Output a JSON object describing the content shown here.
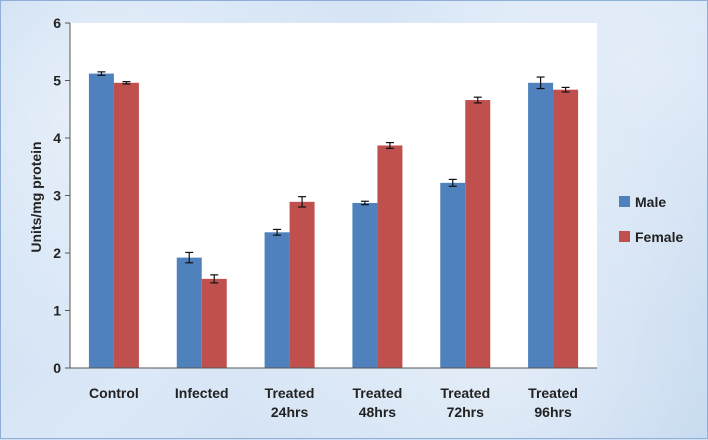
{
  "chart_data": {
    "type": "bar",
    "title": "",
    "xlabel": "",
    "ylabel": "Units/mg protein",
    "ylim": [
      0,
      6
    ],
    "yticks": [
      "0",
      "1",
      "2",
      "3",
      "4",
      "5",
      "6"
    ],
    "categories": [
      [
        "Control"
      ],
      [
        "Infected"
      ],
      [
        "Treated",
        "24hrs"
      ],
      [
        "Treated",
        "48hrs"
      ],
      [
        "Treated",
        "72hrs"
      ],
      [
        "Treated",
        "96hrs"
      ]
    ],
    "series": [
      {
        "name": "Male",
        "color": "#4f81bd",
        "values": [
          5.12,
          1.92,
          2.36,
          2.87,
          3.22,
          4.96
        ],
        "errors": [
          0.03,
          0.09,
          0.05,
          0.03,
          0.06,
          0.1
        ]
      },
      {
        "name": "Female",
        "color": "#c0504d",
        "values": [
          4.96,
          1.55,
          2.89,
          3.87,
          4.66,
          4.84
        ],
        "errors": [
          0.02,
          0.07,
          0.09,
          0.05,
          0.05,
          0.04
        ]
      }
    ],
    "legend_position": "right",
    "grid": false
  }
}
